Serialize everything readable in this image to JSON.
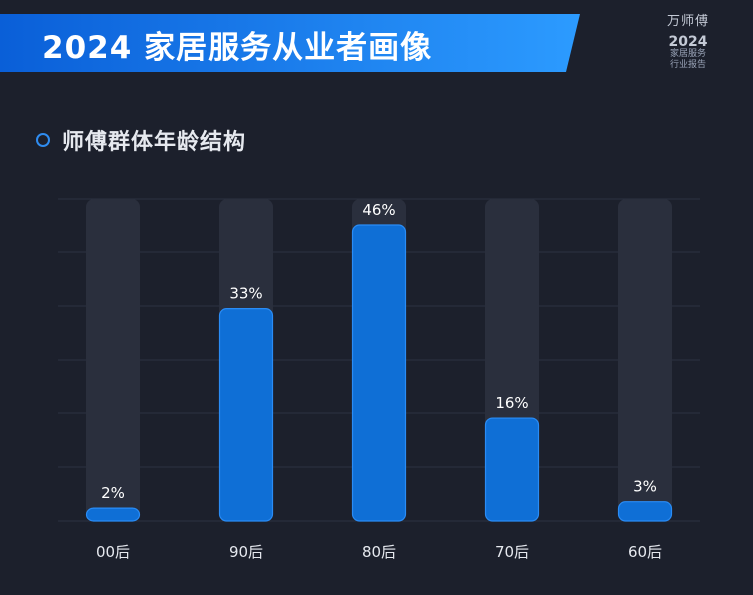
{
  "header": {
    "title": "2024 家居服务从业者画像",
    "brand": {
      "logo_text": "万师傅",
      "year": "2024",
      "line1": "家居服务",
      "line2": "行业报告"
    }
  },
  "section": {
    "title": "师傅群体年龄结构"
  },
  "colors": {
    "bar": "#0f6fd6",
    "bar_border": "#2a8cf5",
    "track": "#2a2f3d",
    "grid": "#2c3242",
    "label": "#ffffff",
    "axis_label": "#e6e9ef"
  },
  "chart_data": {
    "type": "bar",
    "categories": [
      "00后",
      "90后",
      "80后",
      "70后",
      "60后"
    ],
    "values": [
      2,
      33,
      46,
      16,
      3
    ],
    "value_labels": [
      "2%",
      "33%",
      "46%",
      "16%",
      "3%"
    ],
    "ylim": [
      0,
      46
    ],
    "grid": true,
    "legend": "none"
  }
}
